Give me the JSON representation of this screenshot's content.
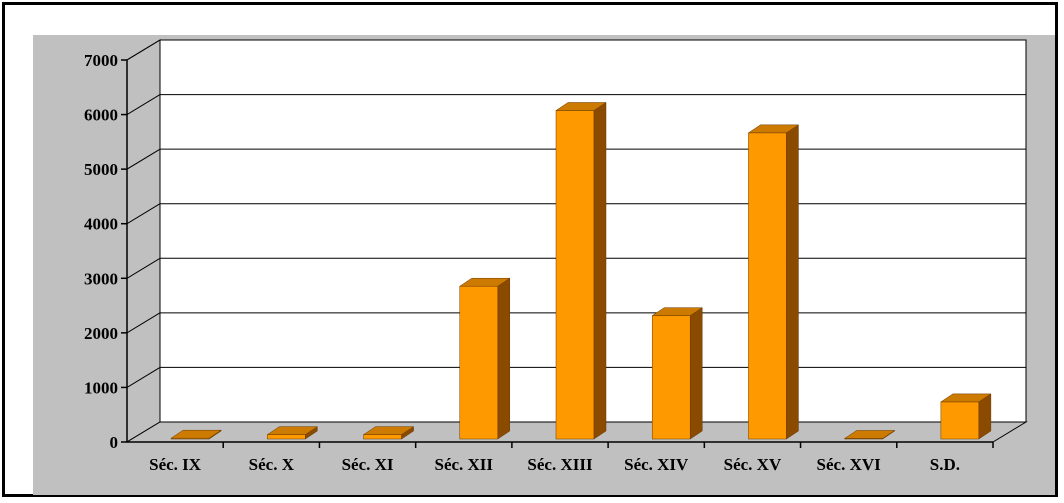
{
  "chart_data": {
    "type": "bar",
    "title": "",
    "xlabel": "",
    "ylabel": "",
    "categories": [
      "Séc. IX",
      "Séc. X",
      "Séc. XI",
      "Séc. XII",
      "Séc. XIII",
      "Séc. XIV",
      "Séc. XV",
      "Séc. XVI",
      "S.D."
    ],
    "values": [
      15,
      80,
      80,
      2800,
      6020,
      2260,
      5610,
      10,
      680
    ],
    "ylim": [
      0,
      7000
    ],
    "yticks": [
      "0",
      "1000",
      "2000",
      "3000",
      "4000",
      "5000",
      "6000",
      "7000"
    ],
    "grid": true,
    "legend": "none",
    "style": "3d-column"
  },
  "colors": {
    "plot_area_background": "#c0c0c0",
    "back_wall": "#ffffff",
    "bar_front": "#ff9900",
    "bar_side": "#8a4a00",
    "bar_top": "#cc7a00",
    "gridline": "#000000",
    "frame": "#000000"
  }
}
